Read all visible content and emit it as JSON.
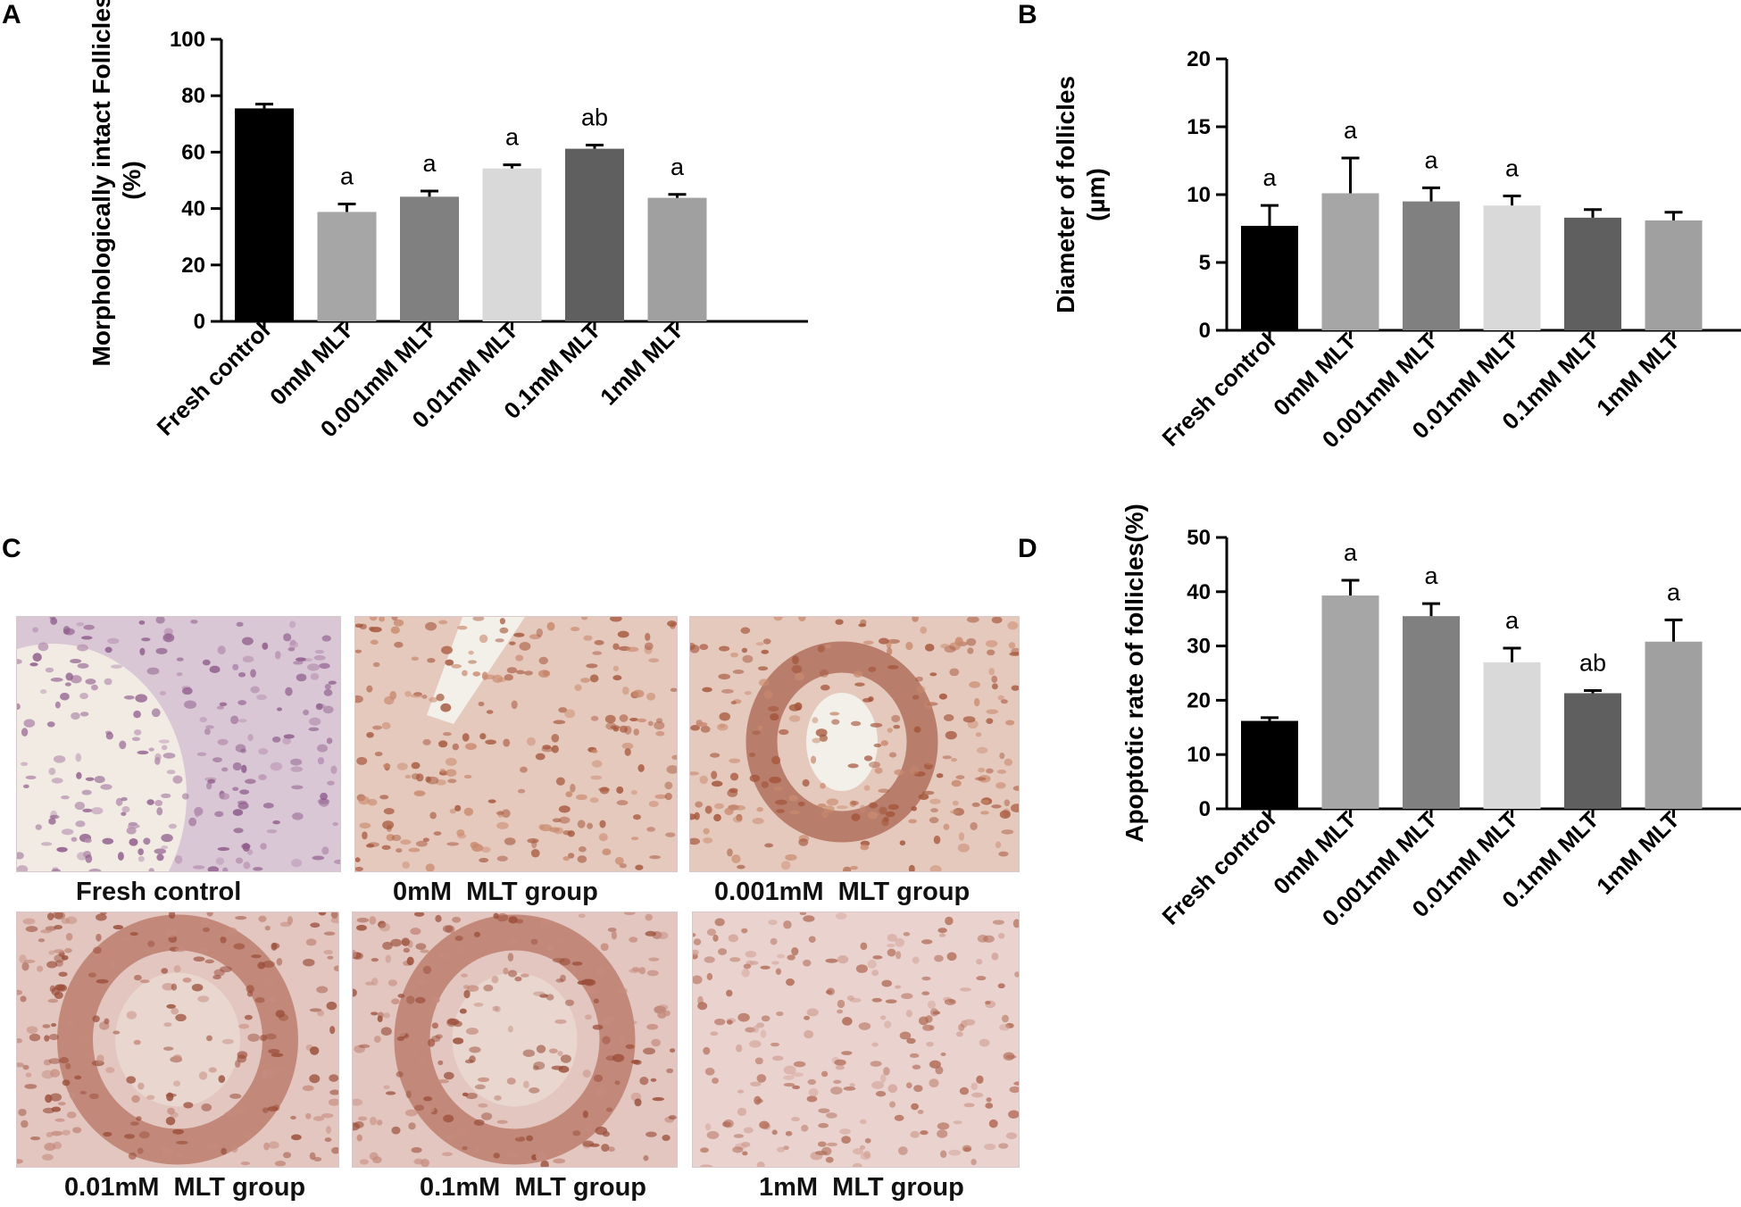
{
  "panels": {
    "a": "A",
    "b": "B",
    "c": "C",
    "d": "D"
  },
  "colors": {
    "fresh": "#000000",
    "mlt0": "#a6a6a6",
    "mlt0001": "#808080",
    "mlt001": "#d9d9d9",
    "mlt01": "#5f5f5f",
    "mlt1": "#a0a0a0"
  },
  "chart_data": [
    {
      "id": "A",
      "type": "bar",
      "ylabel_lines": [
        "Morphologically intact Follicles",
        "(%)"
      ],
      "xlabel": "",
      "ylim": [
        0,
        100
      ],
      "yticks": [
        0,
        20,
        40,
        60,
        80,
        100
      ],
      "categories": [
        "Fresh control",
        "0mM MLT",
        "0.001mM MLT",
        "0.01mM  MLT",
        "0.1mM MLT",
        "1mM MLT"
      ],
      "values": [
        75.5,
        38.8,
        44.2,
        54.2,
        61.2,
        43.8
      ],
      "errors": [
        1.5,
        2.8,
        2.0,
        1.3,
        1.3,
        1.2
      ],
      "annotations": [
        "",
        "a",
        "a",
        "a",
        "ab",
        "a"
      ]
    },
    {
      "id": "B",
      "type": "bar",
      "ylabel_lines": [
        "Diameter of follicles",
        "(µm)"
      ],
      "xlabel": "",
      "ylim": [
        0,
        20
      ],
      "yticks": [
        0,
        5,
        10,
        15,
        20
      ],
      "categories": [
        "Fresh control",
        "0mM MLT",
        "0.001mM MLT",
        "0.01mM  MLT",
        "0.1mM MLT",
        "1mM MLT"
      ],
      "values": [
        7.7,
        10.1,
        9.5,
        9.2,
        8.3,
        8.1
      ],
      "errors": [
        1.5,
        2.6,
        1.0,
        0.7,
        0.6,
        0.6
      ],
      "annotations": [
        "a",
        "a",
        "a",
        "a",
        "",
        ""
      ]
    },
    {
      "id": "D",
      "type": "bar",
      "ylabel_lines": [
        "Apoptotic rate of follicles(%)"
      ],
      "xlabel": "",
      "ylim": [
        0,
        50
      ],
      "yticks": [
        0,
        10,
        20,
        30,
        40,
        50
      ],
      "categories": [
        "Fresh control",
        "0mM MLT",
        "0.001mM MLT",
        "0.01mM  MLT",
        "0.1mM MLT",
        "1mM MLT"
      ],
      "values": [
        16.2,
        39.3,
        35.5,
        27.0,
        21.3,
        30.8
      ],
      "errors": [
        0.6,
        2.8,
        2.3,
        2.6,
        0.5,
        4.0
      ],
      "annotations": [
        "",
        "a",
        "a",
        "a",
        "ab",
        "a"
      ]
    }
  ],
  "micrographs": [
    {
      "caption": "Fresh control",
      "tone": "purple"
    },
    {
      "caption": "0mM  MLT group",
      "tone": "brown"
    },
    {
      "caption": "0.001mM  MLT group",
      "tone": "brown"
    },
    {
      "caption": "0.01mM  MLT group",
      "tone": "ring"
    },
    {
      "caption": "0.1mM  MLT group",
      "tone": "ring"
    },
    {
      "caption": "1mM  MLT group",
      "tone": "faint"
    }
  ]
}
